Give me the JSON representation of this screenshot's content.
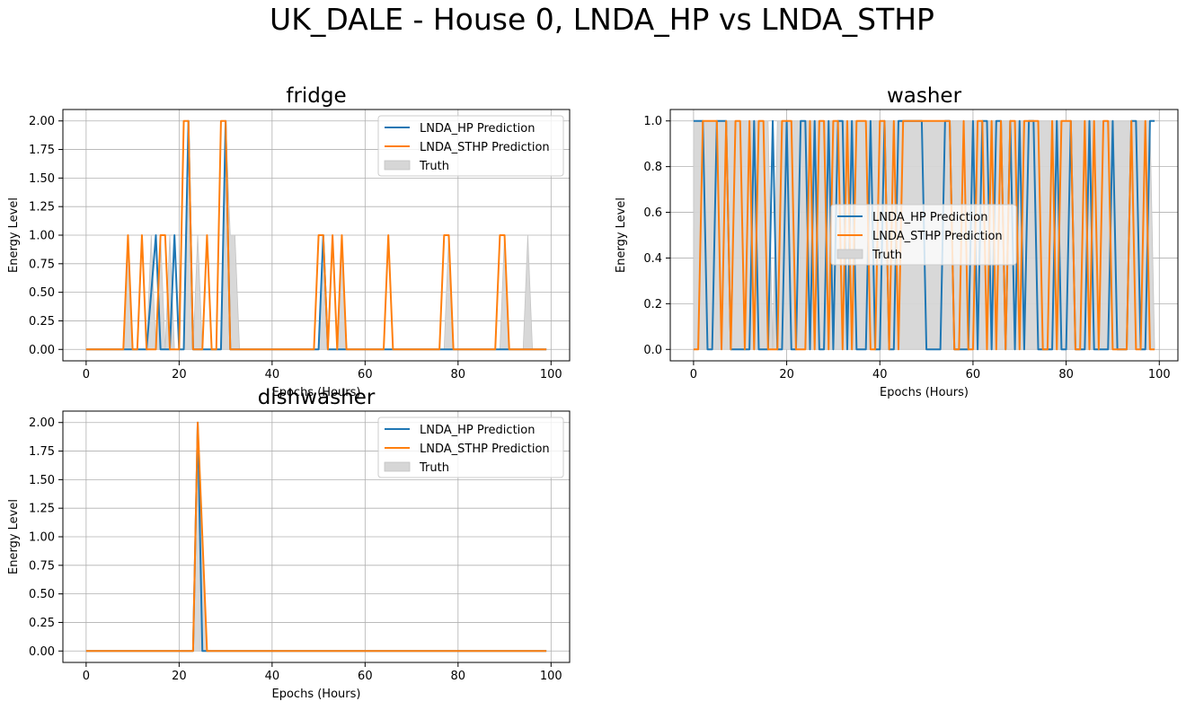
{
  "figure": {
    "suptitle": "UK_DALE - House 0, LNDA_HP vs LNDA_STHP"
  },
  "colors": {
    "hp": "#1f77b4",
    "sthp": "#ff7f0e",
    "truth_fill": "#d6d6d6",
    "truth_edge": "#c4c4c4",
    "grid": "#b0b0b0"
  },
  "chart_data": [
    {
      "type": "line",
      "title": "fridge",
      "xlabel": "Epochs (Hours)",
      "ylabel": "Energy Level",
      "xlim": [
        -5,
        104
      ],
      "ylim": [
        -0.1,
        2.1
      ],
      "xticks": [
        0,
        20,
        40,
        60,
        80,
        100
      ],
      "yticks": [
        0.0,
        0.25,
        0.5,
        0.75,
        1.0,
        1.25,
        1.5,
        1.75,
        2.0
      ],
      "ytick_labels": [
        "0.00",
        "0.25",
        "0.50",
        "0.75",
        "1.00",
        "1.25",
        "1.50",
        "1.75",
        "2.00"
      ],
      "grid": true,
      "legend_position": "top-right",
      "series": [
        {
          "name": "LNDA_HP Prediction",
          "kind": "line",
          "x": [
            0,
            13,
            15,
            16,
            18,
            19,
            20,
            21,
            22,
            23,
            28,
            29,
            30,
            31,
            49,
            50,
            51,
            52,
            99
          ],
          "y": [
            0,
            0,
            1,
            0,
            0,
            1,
            0,
            0,
            2,
            0,
            0,
            0,
            2,
            0,
            0,
            0,
            1,
            0,
            0
          ]
        },
        {
          "name": "LNDA_STHP Prediction",
          "kind": "line",
          "x": [
            0,
            8,
            9,
            10,
            11,
            12,
            13,
            15,
            16,
            17,
            18,
            19,
            20,
            21,
            22,
            23,
            25,
            26,
            27,
            28,
            29,
            30,
            31,
            49,
            50,
            51,
            52,
            53,
            54,
            55,
            56,
            64,
            65,
            66,
            76,
            77,
            78,
            79,
            88,
            89,
            90,
            91,
            99
          ],
          "y": [
            0,
            0,
            1,
            0,
            0,
            1,
            0,
            0,
            1,
            1,
            0,
            0,
            0,
            2,
            2,
            0,
            0,
            1,
            0,
            0,
            2,
            2,
            0,
            0,
            1,
            1,
            0,
            1,
            0,
            1,
            0,
            0,
            1,
            0,
            0,
            1,
            1,
            0,
            0,
            1,
            1,
            0,
            0
          ]
        },
        {
          "name": "Truth",
          "kind": "area",
          "x": [
            0,
            8,
            9,
            10,
            11,
            13,
            14,
            15,
            16,
            17,
            18,
            19,
            20,
            21,
            22,
            23,
            24,
            25,
            26,
            28,
            29,
            30,
            31,
            32,
            33,
            50,
            51,
            52,
            54,
            55,
            56,
            77,
            78,
            79,
            89,
            90,
            91,
            94,
            95,
            96,
            99
          ],
          "y": [
            0,
            0,
            1,
            0,
            0,
            0,
            1,
            0,
            1,
            0,
            1,
            0,
            0,
            0,
            2,
            0,
            1,
            0,
            0,
            0,
            0,
            2,
            1,
            1,
            0,
            0,
            1,
            0,
            0,
            1,
            0,
            0,
            1,
            0,
            0,
            1,
            0,
            0,
            1,
            0,
            0
          ]
        }
      ]
    },
    {
      "type": "line",
      "title": "washer",
      "xlabel": "Epochs (Hours)",
      "ylabel": "Energy Level",
      "xlim": [
        -5,
        104
      ],
      "ylim": [
        -0.05,
        1.05
      ],
      "xticks": [
        0,
        20,
        40,
        60,
        80,
        100
      ],
      "yticks": [
        0.0,
        0.2,
        0.4,
        0.6,
        0.8,
        1.0
      ],
      "ytick_labels": [
        "0.0",
        "0.2",
        "0.4",
        "0.6",
        "0.8",
        "1.0"
      ],
      "grid": true,
      "legend_position": "center-right",
      "series": [
        {
          "name": "LNDA_HP Prediction",
          "kind": "line",
          "x": [
            0,
            1,
            2,
            3,
            4,
            5,
            6,
            7,
            8,
            9,
            10,
            11,
            12,
            13,
            14,
            15,
            16,
            17,
            18,
            19,
            20,
            21,
            22,
            23,
            24,
            25,
            26,
            27,
            28,
            29,
            30,
            31,
            32,
            33,
            34,
            35,
            36,
            37,
            38,
            39,
            40,
            41,
            42,
            43,
            44,
            45,
            46,
            47,
            48,
            49,
            50,
            51,
            52,
            53,
            54,
            55,
            56,
            57,
            58,
            59,
            60,
            61,
            62,
            63,
            64,
            65,
            66,
            67,
            68,
            69,
            70,
            71,
            72,
            73,
            74,
            75,
            76,
            77,
            78,
            79,
            80,
            81,
            82,
            83,
            84,
            85,
            86,
            87,
            88,
            89,
            90,
            91,
            92,
            93,
            94,
            95,
            96,
            97,
            98,
            99
          ],
          "y": [
            1,
            1,
            1,
            0,
            0,
            1,
            1,
            1,
            0,
            0,
            0,
            0,
            0,
            1,
            0,
            0,
            0,
            1,
            0,
            0,
            1,
            0,
            0,
            1,
            1,
            0,
            1,
            0,
            0,
            1,
            0,
            1,
            1,
            0,
            1,
            0,
            0,
            0,
            1,
            0,
            0,
            1,
            0,
            0,
            1,
            1,
            1,
            1,
            1,
            1,
            0,
            0,
            0,
            0,
            1,
            1,
            0,
            0,
            0,
            0,
            1,
            0,
            1,
            1,
            0,
            1,
            1,
            0,
            1,
            0,
            1,
            0,
            1,
            1,
            0,
            0,
            0,
            0,
            1,
            0,
            0,
            1,
            0,
            0,
            0,
            1,
            0,
            0,
            0,
            0,
            1,
            0,
            0,
            0,
            1,
            1,
            0,
            0,
            1,
            1
          ]
        },
        {
          "name": "LNDA_STHP Prediction",
          "kind": "line",
          "x": [
            0,
            1,
            2,
            3,
            4,
            5,
            6,
            7,
            8,
            9,
            10,
            11,
            12,
            13,
            14,
            15,
            16,
            17,
            18,
            19,
            20,
            21,
            22,
            23,
            24,
            25,
            26,
            27,
            28,
            29,
            30,
            31,
            32,
            33,
            34,
            35,
            36,
            37,
            38,
            39,
            40,
            41,
            42,
            43,
            44,
            45,
            46,
            47,
            48,
            49,
            50,
            51,
            52,
            53,
            54,
            55,
            56,
            57,
            58,
            59,
            60,
            61,
            62,
            63,
            64,
            65,
            66,
            67,
            68,
            69,
            70,
            71,
            72,
            73,
            74,
            75,
            76,
            77,
            78,
            79,
            80,
            81,
            82,
            83,
            84,
            85,
            86,
            87,
            88,
            89,
            90,
            91,
            92,
            93,
            94,
            95,
            96,
            97,
            98,
            99
          ],
          "y": [
            0,
            0,
            1,
            1,
            1,
            1,
            0,
            1,
            0,
            1,
            1,
            0,
            1,
            0,
            1,
            1,
            0,
            0,
            0,
            1,
            1,
            1,
            0,
            0,
            0,
            1,
            0,
            1,
            1,
            0,
            1,
            1,
            0,
            1,
            0,
            1,
            1,
            1,
            0,
            0,
            1,
            1,
            0,
            1,
            0,
            1,
            1,
            1,
            1,
            1,
            1,
            1,
            1,
            1,
            1,
            1,
            0,
            0,
            1,
            0,
            0,
            1,
            1,
            0,
            1,
            0,
            1,
            0,
            1,
            1,
            0,
            1,
            1,
            1,
            1,
            0,
            0,
            1,
            0,
            1,
            1,
            1,
            0,
            0,
            1,
            0,
            1,
            0,
            1,
            1,
            0,
            0,
            0,
            0,
            1,
            0,
            0,
            1,
            0,
            0
          ]
        },
        {
          "name": "Truth",
          "kind": "area",
          "x": [
            0,
            1,
            2,
            3,
            4,
            5,
            6,
            7,
            8,
            9,
            10,
            11,
            12,
            13,
            14,
            15,
            16,
            17,
            18,
            19,
            20,
            21,
            22,
            23,
            24,
            25,
            26,
            27,
            28,
            29,
            30,
            31,
            32,
            33,
            34,
            35,
            36,
            37,
            38,
            39,
            40,
            41,
            42,
            43,
            44,
            45,
            46,
            47,
            48,
            49,
            50,
            51,
            52,
            53,
            54,
            55,
            56,
            57,
            58,
            59,
            60,
            61,
            62,
            63,
            64,
            65,
            66,
            67,
            68,
            69,
            70,
            71,
            72,
            73,
            74,
            75,
            76,
            77,
            78,
            79,
            80,
            81,
            82,
            83,
            84,
            85,
            86,
            87,
            88,
            89,
            90,
            91,
            92,
            93,
            94,
            95,
            96,
            97,
            98,
            99
          ],
          "y": [
            1,
            1,
            1,
            1,
            1,
            1,
            1,
            1,
            1,
            1,
            1,
            1,
            1,
            1,
            1,
            1,
            1,
            0,
            1,
            1,
            1,
            1,
            1,
            1,
            1,
            1,
            1,
            1,
            1,
            1,
            1,
            1,
            1,
            1,
            1,
            1,
            1,
            1,
            1,
            1,
            1,
            1,
            1,
            1,
            1,
            1,
            1,
            1,
            1,
            1,
            1,
            1,
            1,
            1,
            1,
            1,
            1,
            1,
            1,
            1,
            1,
            1,
            1,
            1,
            1,
            1,
            1,
            1,
            1,
            1,
            1,
            1,
            1,
            1,
            1,
            1,
            1,
            1,
            1,
            1,
            1,
            1,
            1,
            1,
            1,
            1,
            1,
            1,
            1,
            1,
            1,
            1,
            1,
            1,
            1,
            1,
            1,
            1,
            1,
            0
          ]
        }
      ]
    },
    {
      "type": "line",
      "title": "dishwasher",
      "xlabel": "Epochs (Hours)",
      "ylabel": "Energy Level",
      "xlim": [
        -5,
        104
      ],
      "ylim": [
        -0.1,
        2.1
      ],
      "xticks": [
        0,
        20,
        40,
        60,
        80,
        100
      ],
      "yticks": [
        0.0,
        0.25,
        0.5,
        0.75,
        1.0,
        1.25,
        1.5,
        1.75,
        2.0
      ],
      "ytick_labels": [
        "0.00",
        "0.25",
        "0.50",
        "0.75",
        "1.00",
        "1.25",
        "1.50",
        "1.75",
        "2.00"
      ],
      "grid": true,
      "legend_position": "top-right",
      "series": [
        {
          "name": "LNDA_HP Prediction",
          "kind": "line",
          "x": [
            0,
            23,
            24,
            25,
            99
          ],
          "y": [
            0,
            0,
            2,
            0,
            0
          ]
        },
        {
          "name": "LNDA_STHP Prediction",
          "kind": "line",
          "x": [
            0,
            23,
            24,
            25,
            26,
            99
          ],
          "y": [
            0,
            0,
            2,
            1,
            0,
            0
          ]
        },
        {
          "name": "Truth",
          "kind": "area",
          "x": [
            0,
            23,
            24,
            25,
            26,
            99
          ],
          "y": [
            0,
            0,
            2,
            1,
            0,
            0
          ]
        }
      ]
    }
  ]
}
